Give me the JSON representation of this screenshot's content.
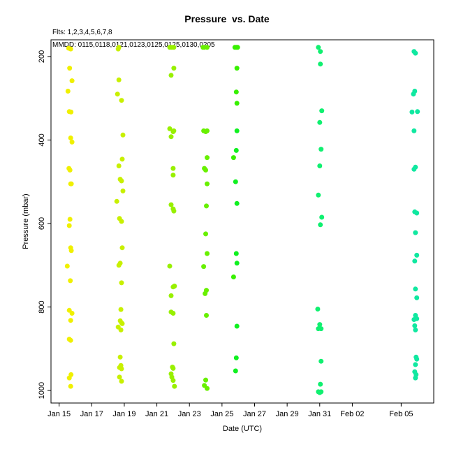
{
  "chart_data": {
    "type": "scatter",
    "title": "Pressure  vs. Date",
    "subtitle": "Flts: 1,2,3,4,5,6,7,8",
    "annotation": "MMDD: 0115,0118,0121,0123,0125,0125,0130,0205",
    "xlabel": "Date (UTC)",
    "ylabel": "Pressure (mbar)",
    "x_axis": {
      "scale": "date",
      "range": [
        "2018-01-14T12:00",
        "2018-02-07T00:00"
      ],
      "tick_dates": [
        "2018-01-15",
        "2018-01-17",
        "2018-01-19",
        "2018-01-21",
        "2018-01-23",
        "2018-01-25",
        "2018-01-27",
        "2018-01-29",
        "2018-01-31",
        "2018-02-02",
        "2018-02-05"
      ],
      "tick_labels": [
        "Jan 15",
        "Jan 17",
        "Jan 19",
        "Jan 21",
        "Jan 23",
        "Jan 25",
        "Jan 27",
        "Jan 29",
        "Jan 31",
        "Feb 02",
        "Feb 05"
      ]
    },
    "y_axis": {
      "range": [
        1030,
        160
      ],
      "reversed": true,
      "ticks": [
        200,
        400,
        600,
        800,
        1000
      ],
      "tick_labels": [
        "200",
        "400",
        "600",
        "800",
        "1000"
      ]
    },
    "grid": false,
    "series": [
      {
        "color": "#f0f000",
        "points": [
          [
            "2018-01-15T14:00",
            180
          ],
          [
            "2018-01-15T17:00",
            182
          ],
          [
            "2018-01-15T15:30",
            228
          ],
          [
            "2018-01-15T19:00",
            258
          ],
          [
            "2018-01-15T13:00",
            283
          ],
          [
            "2018-01-15T15:00",
            332
          ],
          [
            "2018-01-15T17:30",
            333
          ],
          [
            "2018-01-15T17:00",
            395
          ],
          [
            "2018-01-15T19:00",
            405
          ],
          [
            "2018-01-15T14:30",
            468
          ],
          [
            "2018-01-15T16:00",
            472
          ],
          [
            "2018-01-15T17:00",
            505
          ],
          [
            "2018-01-15T18:00",
            505
          ],
          [
            "2018-01-15T16:00",
            590
          ],
          [
            "2018-01-15T15:00",
            605
          ],
          [
            "2018-01-15T17:00",
            658
          ],
          [
            "2018-01-15T18:00",
            665
          ],
          [
            "2018-01-15T12:00",
            702
          ],
          [
            "2018-01-15T16:30",
            737
          ],
          [
            "2018-01-15T15:00",
            808
          ],
          [
            "2018-01-15T19:00",
            815
          ],
          [
            "2018-01-15T17:00",
            832
          ],
          [
            "2018-01-15T15:00",
            877
          ],
          [
            "2018-01-15T17:00",
            880
          ],
          [
            "2018-01-15T17:30",
            962
          ],
          [
            "2018-01-15T15:00",
            970
          ],
          [
            "2018-01-15T17:00",
            990
          ]
        ]
      },
      {
        "color": "#c8f000",
        "points": [
          [
            "2018-01-18T16:00",
            178
          ],
          [
            "2018-01-18T15:00",
            182
          ],
          [
            "2018-01-18T16:00",
            256
          ],
          [
            "2018-01-18T14:00",
            290
          ],
          [
            "2018-01-18T20:00",
            305
          ],
          [
            "2018-01-18T22:00",
            388
          ],
          [
            "2018-01-18T21:00",
            446
          ],
          [
            "2018-01-18T16:00",
            462
          ],
          [
            "2018-01-18T18:00",
            494
          ],
          [
            "2018-01-18T20:00",
            498
          ],
          [
            "2018-01-18T22:00",
            522
          ],
          [
            "2018-01-18T13:00",
            547
          ],
          [
            "2018-01-18T17:00",
            588
          ],
          [
            "2018-01-18T20:00",
            595
          ],
          [
            "2018-01-18T21:00",
            658
          ],
          [
            "2018-01-18T18:00",
            695
          ],
          [
            "2018-01-18T16:00",
            700
          ],
          [
            "2018-01-18T20:00",
            742
          ],
          [
            "2018-01-18T19:00",
            806
          ],
          [
            "2018-01-18T18:00",
            833
          ],
          [
            "2018-01-18T20:00",
            838
          ],
          [
            "2018-01-18T21:00",
            840
          ],
          [
            "2018-01-18T15:00",
            848
          ],
          [
            "2018-01-18T19:00",
            855
          ],
          [
            "2018-01-18T18:00",
            920
          ],
          [
            "2018-01-18T19:00",
            940
          ],
          [
            "2018-01-18T17:00",
            945
          ],
          [
            "2018-01-18T20:00",
            948
          ],
          [
            "2018-01-18T17:00",
            968
          ],
          [
            "2018-01-18T20:00",
            978
          ]
        ]
      },
      {
        "color": "#98f000",
        "points": [
          [
            "2018-01-21T19:00",
            178
          ],
          [
            "2018-01-21T22:00",
            178
          ],
          [
            "2018-01-22T01:00",
            178
          ],
          [
            "2018-01-22T01:00",
            228
          ],
          [
            "2018-01-21T21:00",
            245
          ],
          [
            "2018-01-21T19:00",
            373
          ],
          [
            "2018-01-22T00:00",
            380
          ],
          [
            "2018-01-22T01:00",
            378
          ],
          [
            "2018-01-21T21:00",
            392
          ],
          [
            "2018-01-22T00:00",
            468
          ],
          [
            "2018-01-22T00:00",
            484
          ],
          [
            "2018-01-21T21:00",
            555
          ],
          [
            "2018-01-22T01:00",
            570
          ],
          [
            "2018-01-22T00:00",
            565
          ],
          [
            "2018-01-21T19:00",
            702
          ],
          [
            "2018-01-22T02:00",
            750
          ],
          [
            "2018-01-22T00:00",
            752
          ],
          [
            "2018-01-21T21:00",
            773
          ],
          [
            "2018-01-21T21:00",
            812
          ],
          [
            "2018-01-22T00:00",
            815
          ],
          [
            "2018-01-22T01:00",
            888
          ],
          [
            "2018-01-21T23:00",
            944
          ],
          [
            "2018-01-22T00:00",
            947
          ],
          [
            "2018-01-21T21:00",
            960
          ],
          [
            "2018-01-21T22:00",
            968
          ],
          [
            "2018-01-22T00:00",
            976
          ],
          [
            "2018-01-22T02:00",
            990
          ]
        ]
      },
      {
        "color": "#68f000",
        "points": [
          [
            "2018-01-23T20:00",
            178
          ],
          [
            "2018-01-23T22:00",
            178
          ],
          [
            "2018-01-24T02:00",
            178
          ],
          [
            "2018-01-23T21:00",
            378
          ],
          [
            "2018-01-24T00:00",
            380
          ],
          [
            "2018-01-24T02:00",
            378
          ],
          [
            "2018-01-24T02:00",
            442
          ],
          [
            "2018-01-23T22:00",
            468
          ],
          [
            "2018-01-24T00:00",
            472
          ],
          [
            "2018-01-24T02:00",
            505
          ],
          [
            "2018-01-24T01:00",
            558
          ],
          [
            "2018-01-24T00:00",
            625
          ],
          [
            "2018-01-24T02:00",
            672
          ],
          [
            "2018-01-23T21:00",
            703
          ],
          [
            "2018-01-24T01:00",
            760
          ],
          [
            "2018-01-23T23:00",
            768
          ],
          [
            "2018-01-24T01:00",
            820
          ],
          [
            "2018-01-24T00:00",
            975
          ],
          [
            "2018-01-23T22:00",
            988
          ],
          [
            "2018-01-24T02:00",
            995
          ]
        ]
      },
      {
        "color": "#38f000",
        "points": [
          [
            "2018-01-25T19:00",
            178
          ],
          [
            "2018-01-25T21:00",
            178
          ],
          [
            "2018-01-25T23:00",
            178
          ],
          [
            "2018-01-25T22:00",
            228
          ],
          [
            "2018-01-25T21:00",
            285
          ],
          [
            "2018-01-25T22:00",
            312
          ],
          [
            "2018-01-25T17:00",
            442
          ],
          [
            "2018-01-25T17:00",
            728
          ]
        ]
      },
      {
        "color": "#10f020",
        "points": [
          [
            "2018-01-25T22:00",
            378
          ],
          [
            "2018-01-25T21:00",
            425
          ],
          [
            "2018-01-25T20:00",
            500
          ],
          [
            "2018-01-25T22:00",
            552
          ],
          [
            "2018-01-25T21:00",
            672
          ],
          [
            "2018-01-25T22:00",
            695
          ],
          [
            "2018-01-25T22:00",
            846
          ],
          [
            "2018-01-25T21:00",
            922
          ],
          [
            "2018-01-25T20:00",
            953
          ]
        ]
      },
      {
        "color": "#10f070",
        "points": [
          [
            "2018-01-30T22:00",
            178
          ],
          [
            "2018-01-31T01:00",
            188
          ],
          [
            "2018-01-31T01:00",
            218
          ],
          [
            "2018-01-31T00:00",
            358
          ],
          [
            "2018-01-31T03:00",
            330
          ],
          [
            "2018-01-31T02:00",
            422
          ],
          [
            "2018-01-31T00:00",
            462
          ],
          [
            "2018-01-30T22:00",
            532
          ],
          [
            "2018-01-31T03:00",
            585
          ],
          [
            "2018-01-31T01:00",
            603
          ],
          [
            "2018-01-30T21:00",
            805
          ],
          [
            "2018-01-31T00:00",
            842
          ],
          [
            "2018-01-30T22:00",
            852
          ],
          [
            "2018-01-31T02:00",
            852
          ],
          [
            "2018-01-31T02:00",
            930
          ],
          [
            "2018-01-31T01:00",
            985
          ],
          [
            "2018-01-30T22:00",
            1003
          ],
          [
            "2018-01-31T00:00",
            1005
          ],
          [
            "2018-01-31T02:00",
            1003
          ]
        ]
      },
      {
        "color": "#10e8a0",
        "points": [
          [
            "2018-02-05T19:00",
            188
          ],
          [
            "2018-02-05T21:00",
            192
          ],
          [
            "2018-02-05T20:00",
            283
          ],
          [
            "2018-02-05T18:00",
            290
          ],
          [
            "2018-02-05T16:00",
            333
          ],
          [
            "2018-02-06T00:00",
            332
          ],
          [
            "2018-02-05T19:00",
            378
          ],
          [
            "2018-02-05T21:00",
            465
          ],
          [
            "2018-02-05T19:00",
            470
          ],
          [
            "2018-02-05T20:00",
            572
          ],
          [
            "2018-02-05T23:00",
            575
          ],
          [
            "2018-02-05T21:00",
            622
          ],
          [
            "2018-02-05T23:00",
            676
          ],
          [
            "2018-02-05T20:00",
            690
          ],
          [
            "2018-02-05T21:00",
            757
          ],
          [
            "2018-02-05T23:00",
            778
          ],
          [
            "2018-02-05T21:00",
            820
          ],
          [
            "2018-02-05T23:00",
            828
          ],
          [
            "2018-02-05T19:00",
            830
          ],
          [
            "2018-02-05T20:00",
            845
          ],
          [
            "2018-02-05T21:00",
            855
          ],
          [
            "2018-02-05T22:00",
            920
          ],
          [
            "2018-02-05T23:00",
            925
          ],
          [
            "2018-02-05T21:00",
            938
          ],
          [
            "2018-02-05T20:00",
            955
          ],
          [
            "2018-02-05T22:00",
            962
          ],
          [
            "2018-02-05T21:00",
            970
          ]
        ]
      }
    ]
  }
}
